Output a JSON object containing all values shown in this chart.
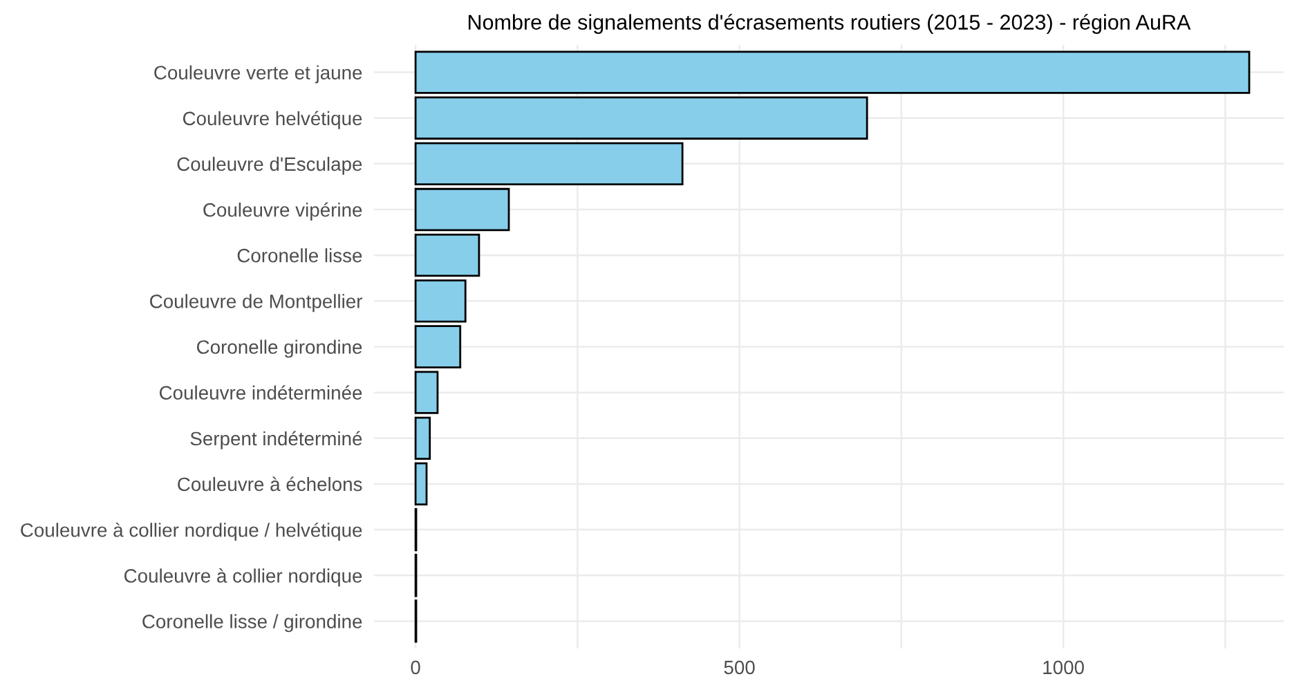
{
  "chart_data": {
    "type": "bar",
    "orientation": "horizontal",
    "title": "Nombre de signalements d'écrasements routiers (2015 - 2023) - région AuRA",
    "categories": [
      "Couleuvre verte et jaune",
      "Couleuvre helvétique",
      "Couleuvre d'Esculape",
      "Couleuvre vipérine",
      "Coronelle lisse",
      "Couleuvre de Montpellier",
      "Coronelle girondine",
      "Couleuvre indéterminée",
      "Serpent indéterminé",
      "Couleuvre à échelons",
      "Couleuvre à collier nordique / helvétique",
      "Couleuvre à collier nordique",
      "Coronelle lisse / girondine"
    ],
    "values": [
      1287,
      697,
      412,
      144,
      98,
      77,
      69,
      34,
      22,
      17,
      1,
      1,
      1
    ],
    "color": "#87ceeb",
    "xlim": [
      -64,
      1340
    ],
    "xticks": [
      0,
      {
        "value": 250,
        "label": null
      },
      500,
      {
        "value": 750,
        "label": null
      },
      1000,
      {
        "value": 1250,
        "label": null
      }
    ],
    "grid": true
  }
}
